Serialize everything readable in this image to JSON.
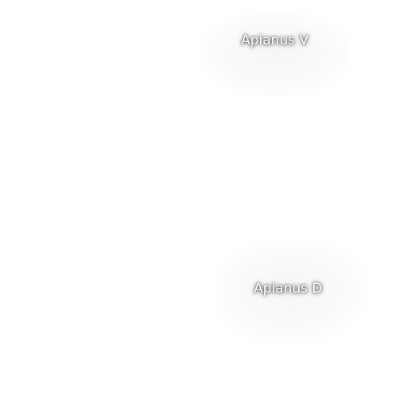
{
  "map": {
    "labels": [
      {
        "text": "Apianus V"
      },
      {
        "text": "Apianus D"
      }
    ],
    "colors": {
      "background": "#ffffff",
      "label_text": "#ffffff",
      "label_shadow": "#000000"
    }
  }
}
